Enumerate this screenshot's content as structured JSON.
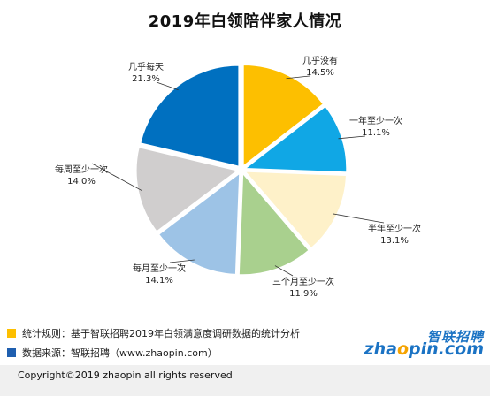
{
  "chart_data": {
    "type": "pie",
    "title": "2019年白领陪伴家人情况",
    "slices": [
      {
        "name": "几乎没有",
        "value": 14.5,
        "label": "14.5%",
        "color": "#FDBF00"
      },
      {
        "name": "一年至少一次",
        "value": 11.1,
        "label": "11.1%",
        "color": "#10A7E5"
      },
      {
        "name": "半年至少一次",
        "value": 13.1,
        "label": "13.1%",
        "color": "#FEF1C9"
      },
      {
        "name": "三个月至少一次",
        "value": 11.9,
        "label": "11.9%",
        "color": "#A9D08E"
      },
      {
        "name": "每月至少一次",
        "value": 14.1,
        "label": "14.1%",
        "color": "#9DC3E6"
      },
      {
        "name": "每周至少一次",
        "value": 14.0,
        "label": "14.0%",
        "color": "#D0CECE"
      },
      {
        "name": "几乎每天",
        "value": 21.3,
        "label": "21.3%",
        "color": "#0070C0"
      }
    ]
  },
  "notes": [
    {
      "text": "统计规则：基于智联招聘2019年白领满意度调研数据的统计分析",
      "color": "#FDBF00"
    },
    {
      "text": "数据来源：智联招聘（www.zhaopin.com）",
      "color": "#1F5FAF"
    }
  ],
  "logo": {
    "cn": "智联招聘",
    "en_a": "zha",
    "en_o": "o",
    "en_b": "pin.com"
  },
  "footer": {
    "copyright": "Copyright©2019 zhaopin all rights reserved"
  }
}
